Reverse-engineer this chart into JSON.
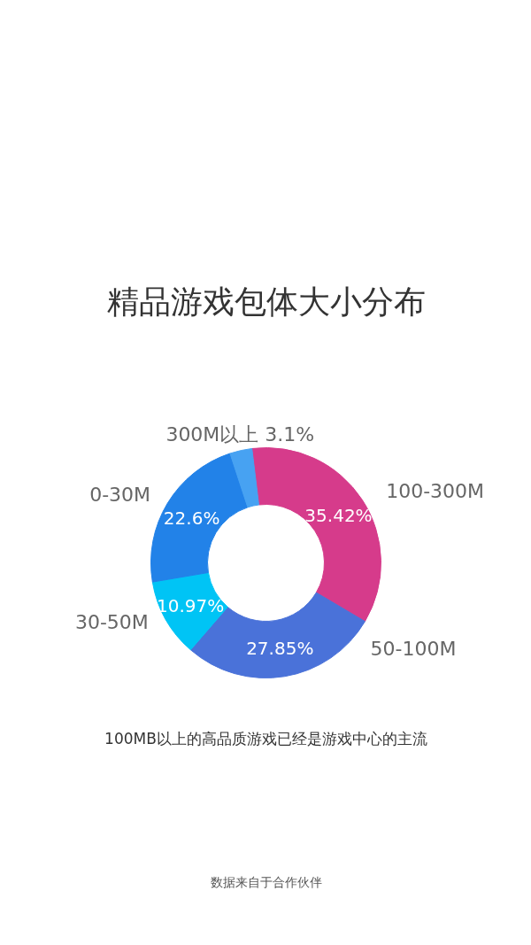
{
  "chart_data": {
    "type": "donut",
    "title": "精品游戏包体大小分布",
    "categories": [
      "100-300M",
      "50-100M",
      "30-50M",
      "0-30M",
      "300M以上"
    ],
    "values": [
      35.42,
      27.85,
      10.97,
      22.6,
      3.1
    ],
    "colors": [
      "#d63b8b",
      "#4a72d9",
      "#00c4f5",
      "#2282e8",
      "#47a2f2"
    ],
    "value_labels": [
      "35.42%",
      "27.85%",
      "10.97%",
      "22.6%",
      "3.1%"
    ],
    "annotations": [
      "100MB以上的高品质游戏已经是游戏中心的主流",
      "数据来自于合作伙伴"
    ]
  }
}
